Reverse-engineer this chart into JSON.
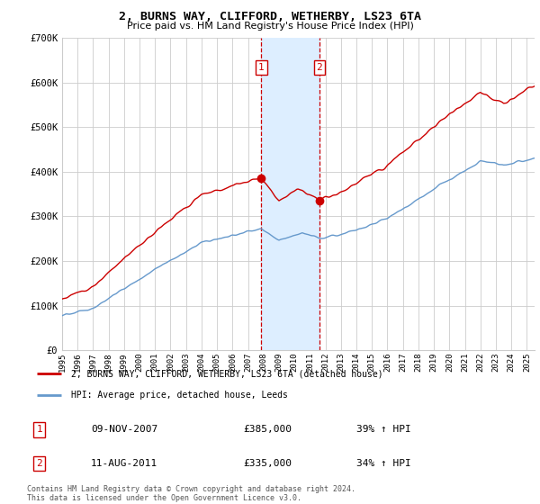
{
  "title": "2, BURNS WAY, CLIFFORD, WETHERBY, LS23 6TA",
  "subtitle": "Price paid vs. HM Land Registry's House Price Index (HPI)",
  "legend_line1": "2, BURNS WAY, CLIFFORD, WETHERBY, LS23 6TA (detached house)",
  "legend_line2": "HPI: Average price, detached house, Leeds",
  "transaction1_date": "09-NOV-2007",
  "transaction1_price": "£385,000",
  "transaction1_hpi": "39% ↑ HPI",
  "transaction2_date": "11-AUG-2011",
  "transaction2_price": "£335,000",
  "transaction2_hpi": "34% ↑ HPI",
  "footnote": "Contains HM Land Registry data © Crown copyright and database right 2024.\nThis data is licensed under the Open Government Licence v3.0.",
  "red_color": "#cc0000",
  "blue_color": "#6699cc",
  "shaded_color": "#ddeeff",
  "grid_color": "#cccccc",
  "background_color": "#ffffff",
  "ylim": [
    0,
    700000
  ],
  "yticks": [
    0,
    100000,
    200000,
    300000,
    400000,
    500000,
    600000,
    700000
  ],
  "ytick_labels": [
    "£0",
    "£100K",
    "£200K",
    "£300K",
    "£400K",
    "£500K",
    "£600K",
    "£700K"
  ],
  "transaction1_x": 2007.86,
  "transaction2_x": 2011.61,
  "transaction1_y": 385000,
  "transaction2_y": 335000,
  "shade_x1": 2007.86,
  "shade_x2": 2011.61,
  "xlim_left": 1995.0,
  "xlim_right": 2025.5
}
